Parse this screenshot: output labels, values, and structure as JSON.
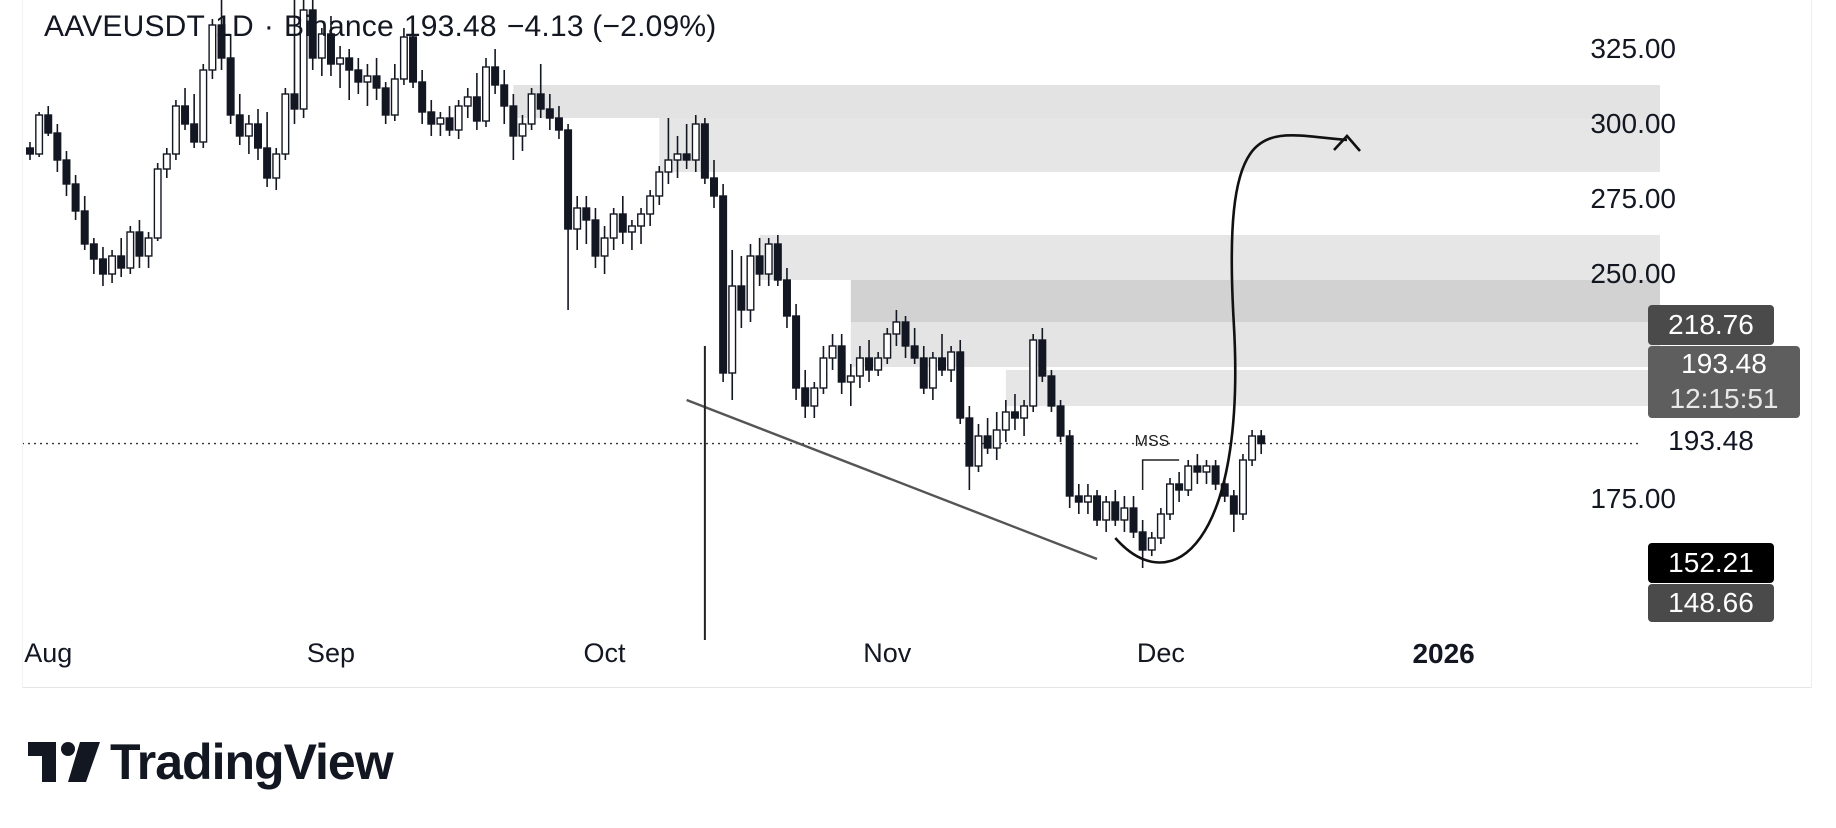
{
  "header": {
    "symbol": "AAVEUSDT",
    "interval": "1D",
    "exchange": "Binance",
    "last": "193.48",
    "change": "−4.13 (−2.09%)",
    "separator": "·"
  },
  "y_axis": {
    "ticks": [
      {
        "value": 325,
        "label": "325.00"
      },
      {
        "value": 300,
        "label": "300.00"
      },
      {
        "value": 275,
        "label": "275.00"
      },
      {
        "value": 250,
        "label": "250.00"
      },
      {
        "value": 175,
        "label": "175.00"
      }
    ]
  },
  "x_axis": {
    "ticks": [
      {
        "label": "Aug",
        "day": 2,
        "bold": false
      },
      {
        "label": "Sep",
        "day": 33,
        "bold": false
      },
      {
        "label": "Oct",
        "day": 63,
        "bold": false
      },
      {
        "label": "Nov",
        "day": 94,
        "bold": false
      },
      {
        "label": "Dec",
        "day": 124,
        "bold": false
      },
      {
        "label": "2026",
        "day": 155,
        "bold": true
      }
    ]
  },
  "price_tags": [
    {
      "value": 218.76,
      "label": "218.76",
      "color": "#4a4a4a"
    },
    {
      "value": 193.48,
      "label": "193.48",
      "sublabel": "12:15:51",
      "color": "#5e5e5e"
    },
    {
      "value": 193.48,
      "label": "193.48",
      "color": "transparent",
      "text_color": "#131722"
    },
    {
      "value": 152.21,
      "label": "152.21",
      "color": "#000000"
    },
    {
      "value": 148.66,
      "label": "148.66",
      "color": "#4a4a4a"
    }
  ],
  "annotations": {
    "mss_label": "MSS"
  },
  "zones": [
    {
      "from_day": 53,
      "to_day": 166,
      "low": 302,
      "high": 313,
      "color": "#e3e3e3"
    },
    {
      "from_day": 69,
      "to_day": 166,
      "low": 284,
      "high": 302,
      "color": "#e6e6e6"
    },
    {
      "from_day": 80,
      "to_day": 166,
      "low": 248,
      "high": 263,
      "color": "#e6e6e6"
    },
    {
      "from_day": 90,
      "to_day": 166,
      "low": 234,
      "high": 248,
      "color": "#d2d2d2"
    },
    {
      "from_day": 90,
      "to_day": 166,
      "low": 219,
      "high": 234,
      "color": "#e4e4e4"
    },
    {
      "from_day": 107,
      "to_day": 166,
      "low": 206,
      "high": 218,
      "color": "#e6e6e6"
    }
  ],
  "chart_data": {
    "type": "candlestick",
    "symbol": "AAVEUSDT",
    "x_unit": "days from Jul 31",
    "ylim": [
      128,
      344
    ],
    "candles": [
      [
        0,
        292,
        294,
        288,
        290
      ],
      [
        1,
        290,
        304,
        289,
        303
      ],
      [
        2,
        303,
        306,
        296,
        297
      ],
      [
        3,
        297,
        300,
        284,
        288
      ],
      [
        4,
        288,
        291,
        276,
        280
      ],
      [
        5,
        280,
        283,
        268,
        271
      ],
      [
        6,
        271,
        276,
        258,
        260
      ],
      [
        7,
        260,
        262,
        250,
        255
      ],
      [
        8,
        255,
        259,
        246,
        250
      ],
      [
        9,
        250,
        258,
        247,
        256
      ],
      [
        10,
        256,
        262,
        249,
        252
      ],
      [
        11,
        252,
        266,
        250,
        264
      ],
      [
        12,
        264,
        268,
        252,
        256
      ],
      [
        13,
        256,
        264,
        252,
        262
      ],
      [
        14,
        262,
        287,
        261,
        285
      ],
      [
        15,
        285,
        292,
        282,
        290
      ],
      [
        16,
        290,
        308,
        288,
        306
      ],
      [
        17,
        306,
        312,
        298,
        300
      ],
      [
        18,
        300,
        310,
        292,
        294
      ],
      [
        19,
        294,
        320,
        292,
        318
      ],
      [
        20,
        318,
        335,
        315,
        333
      ],
      [
        21,
        333,
        342,
        318,
        322
      ],
      [
        22,
        322,
        330,
        300,
        303
      ],
      [
        23,
        303,
        310,
        293,
        296
      ],
      [
        24,
        296,
        303,
        290,
        300
      ],
      [
        25,
        300,
        305,
        288,
        292
      ],
      [
        26,
        292,
        304,
        279,
        282
      ],
      [
        27,
        282,
        292,
        278,
        290
      ],
      [
        28,
        290,
        312,
        288,
        310
      ],
      [
        29,
        310,
        342,
        300,
        305
      ],
      [
        30,
        305,
        342,
        302,
        338
      ],
      [
        31,
        338,
        342,
        318,
        322
      ],
      [
        32,
        322,
        332,
        316,
        330
      ],
      [
        33,
        330,
        336,
        316,
        320
      ],
      [
        34,
        320,
        326,
        312,
        322
      ],
      [
        35,
        322,
        325,
        308,
        318
      ],
      [
        36,
        318,
        322,
        310,
        314
      ],
      [
        37,
        314,
        320,
        306,
        316
      ],
      [
        38,
        316,
        322,
        308,
        312
      ],
      [
        39,
        312,
        314,
        300,
        303
      ],
      [
        40,
        303,
        320,
        301,
        315
      ],
      [
        41,
        315,
        332,
        313,
        329
      ],
      [
        42,
        329,
        333,
        312,
        314
      ],
      [
        43,
        314,
        318,
        300,
        304
      ],
      [
        44,
        304,
        308,
        296,
        300
      ],
      [
        45,
        300,
        304,
        296,
        302
      ],
      [
        46,
        302,
        306,
        296,
        298
      ],
      [
        47,
        298,
        308,
        295,
        306
      ],
      [
        48,
        306,
        312,
        302,
        309
      ],
      [
        49,
        309,
        317,
        298,
        301
      ],
      [
        50,
        301,
        322,
        299,
        319
      ],
      [
        51,
        319,
        325,
        310,
        313
      ],
      [
        52,
        313,
        318,
        300,
        306
      ],
      [
        53,
        306,
        310,
        288,
        296
      ],
      [
        54,
        296,
        303,
        291,
        300
      ],
      [
        55,
        300,
        312,
        298,
        310
      ],
      [
        56,
        310,
        320,
        302,
        305
      ],
      [
        57,
        305,
        310,
        298,
        302
      ],
      [
        58,
        302,
        306,
        295,
        298
      ],
      [
        59,
        298,
        300,
        238,
        265
      ],
      [
        60,
        265,
        276,
        258,
        272
      ],
      [
        61,
        272,
        276,
        260,
        268
      ],
      [
        62,
        268,
        272,
        252,
        256
      ],
      [
        63,
        256,
        266,
        250,
        262
      ],
      [
        64,
        262,
        272,
        258,
        270
      ],
      [
        65,
        270,
        276,
        260,
        264
      ],
      [
        66,
        264,
        268,
        258,
        266
      ],
      [
        67,
        266,
        272,
        260,
        270
      ],
      [
        68,
        270,
        278,
        266,
        276
      ],
      [
        69,
        276,
        286,
        273,
        284
      ],
      [
        70,
        284,
        302,
        280,
        288
      ],
      [
        71,
        288,
        296,
        282,
        290
      ],
      [
        72,
        290,
        300,
        285,
        288
      ],
      [
        73,
        288,
        303,
        284,
        300
      ],
      [
        74,
        300,
        302,
        280,
        282
      ],
      [
        75,
        282,
        288,
        272,
        276
      ],
      [
        76,
        276,
        280,
        214,
        217
      ],
      [
        77,
        217,
        258,
        208,
        246
      ],
      [
        78,
        246,
        256,
        232,
        238
      ],
      [
        79,
        238,
        260,
        234,
        256
      ],
      [
        80,
        256,
        262,
        246,
        250
      ],
      [
        81,
        250,
        262,
        246,
        260
      ],
      [
        82,
        260,
        263,
        246,
        248
      ],
      [
        83,
        248,
        252,
        232,
        236
      ],
      [
        84,
        236,
        240,
        208,
        212
      ],
      [
        85,
        212,
        218,
        202,
        206
      ],
      [
        86,
        206,
        214,
        202,
        212
      ],
      [
        87,
        212,
        226,
        210,
        222
      ],
      [
        88,
        222,
        230,
        218,
        226
      ],
      [
        89,
        226,
        230,
        210,
        214
      ],
      [
        90,
        214,
        220,
        206,
        216
      ],
      [
        91,
        216,
        226,
        212,
        222
      ],
      [
        92,
        222,
        228,
        214,
        218
      ],
      [
        93,
        218,
        224,
        216,
        222
      ],
      [
        94,
        222,
        232,
        220,
        230
      ],
      [
        95,
        230,
        238,
        226,
        234
      ],
      [
        96,
        234,
        236,
        222,
        226
      ],
      [
        97,
        226,
        232,
        220,
        222
      ],
      [
        98,
        222,
        226,
        210,
        212
      ],
      [
        99,
        212,
        224,
        208,
        222
      ],
      [
        100,
        222,
        230,
        216,
        218
      ],
      [
        101,
        218,
        226,
        214,
        224
      ],
      [
        102,
        224,
        228,
        200,
        202
      ],
      [
        103,
        202,
        206,
        178,
        186
      ],
      [
        104,
        186,
        200,
        184,
        196
      ],
      [
        105,
        196,
        202,
        190,
        192
      ],
      [
        106,
        192,
        204,
        188,
        198
      ],
      [
        107,
        198,
        208,
        194,
        204
      ],
      [
        108,
        204,
        210,
        198,
        202
      ],
      [
        109,
        202,
        208,
        196,
        206
      ],
      [
        110,
        206,
        230,
        204,
        228
      ],
      [
        111,
        228,
        232,
        214,
        216
      ],
      [
        112,
        216,
        218,
        204,
        206
      ],
      [
        113,
        206,
        208,
        194,
        196
      ],
      [
        114,
        196,
        198,
        172,
        176
      ],
      [
        115,
        176,
        180,
        170,
        174
      ],
      [
        116,
        174,
        180,
        170,
        176
      ],
      [
        117,
        176,
        178,
        166,
        168
      ],
      [
        118,
        168,
        176,
        164,
        174
      ],
      [
        119,
        174,
        178,
        166,
        168
      ],
      [
        120,
        168,
        176,
        164,
        172
      ],
      [
        121,
        172,
        176,
        162,
        164
      ],
      [
        122,
        164,
        168,
        152,
        158
      ],
      [
        123,
        158,
        164,
        156,
        162
      ],
      [
        124,
        162,
        172,
        160,
        170
      ],
      [
        125,
        170,
        182,
        168,
        180
      ],
      [
        126,
        180,
        184,
        174,
        178
      ],
      [
        127,
        178,
        188,
        176,
        186
      ],
      [
        128,
        186,
        190,
        180,
        184
      ],
      [
        129,
        184,
        188,
        180,
        186
      ],
      [
        130,
        186,
        188,
        178,
        180
      ],
      [
        131,
        180,
        182,
        174,
        176
      ],
      [
        132,
        176,
        178,
        164,
        170
      ],
      [
        133,
        170,
        190,
        168,
        188
      ],
      [
        134,
        188,
        198,
        186,
        196
      ],
      [
        135,
        196,
        198,
        190,
        193.48
      ]
    ],
    "trendlines": [
      {
        "from": [
          72,
          208
        ],
        "to": [
          117,
          155
        ]
      },
      {
        "from": [
          74,
          226
        ],
        "to": [
          74,
          128
        ]
      }
    ],
    "mss_level": {
      "from": [
        122,
        188
      ],
      "to": [
        126,
        188
      ]
    },
    "projection_arrow": [
      [
        119,
        162
      ],
      [
        123,
        154
      ],
      [
        129,
        170
      ],
      [
        132,
        220
      ],
      [
        135,
        290
      ]
    ],
    "last_price": 193.48
  }
}
